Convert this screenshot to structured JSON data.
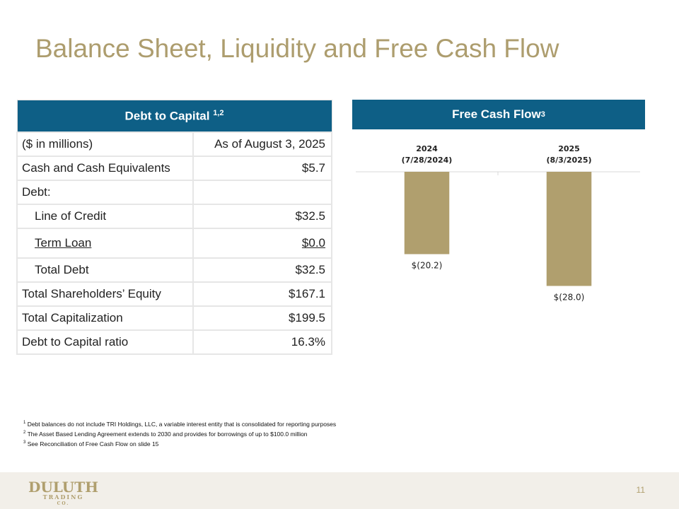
{
  "header": {
    "title": "Balance Sheet, Liquidity and Free Cash Flow"
  },
  "table": {
    "title": "Debt to Capital",
    "title_sup": "1,2",
    "rows": [
      [
        "($ in millions)",
        "As of August 3, 2025"
      ],
      [
        "Cash and Cash Equivalents",
        "$5.7"
      ],
      [
        "Debt:"
      ],
      [
        "Line of Credit",
        "$32.5"
      ],
      [
        "Term Loan",
        "$0.0"
      ],
      [
        "Total Debt",
        "$32.5"
      ],
      [
        "Total Shareholders’ Equity",
        "$167.1"
      ],
      [
        "Total Capitalization",
        "$199.5"
      ],
      [
        "Debt to Capital ratio",
        "16.3%"
      ]
    ]
  },
  "chart_data": {
    "type": "bar",
    "title": "Free Cash Flow",
    "title_sup": "3",
    "categories": [
      "2024",
      "2025"
    ],
    "category_dates": [
      "(7/28/2024)",
      "(8/3/2025)"
    ],
    "values": [
      -20.2,
      -28.0
    ],
    "value_labels": [
      "$(20.2)",
      "$(28.0)"
    ],
    "color": "#b09f6e",
    "ylim": [
      -30,
      0
    ]
  },
  "footnotes": [
    {
      "sup": "1",
      "text": "Debt balances do not include TRI Holdings, LLC, a variable interest entity that is consolidated for reporting purposes"
    },
    {
      "sup": "2",
      "text": "The Asset Based Lending Agreement extends to 2030 and provides for borrowings of up to $100.0 million"
    },
    {
      "sup": "3",
      "text": "See Reconciliation of Free Cash Flow on slide 15"
    }
  ],
  "footer": {
    "logo": "DULUTH",
    "logo_sub": "TRADING",
    "logo_co": "CO.",
    "page": "11"
  }
}
